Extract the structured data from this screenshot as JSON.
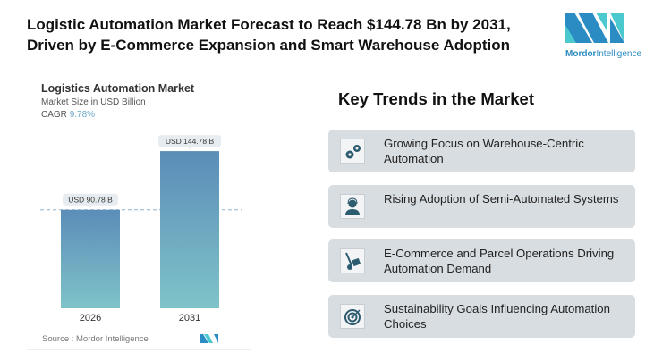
{
  "title": "Logistic Automation Market Forecast to Reach $144.78 Bn by 2031, Driven by E-Commerce Expansion and Smart Warehouse Adoption",
  "logo": {
    "word1": "Mordor",
    "word2": "Intelligence"
  },
  "chart_data": {
    "type": "bar",
    "title": "Logistics Automation Market",
    "subtitle": "Market Size in USD Billion",
    "cagr_label": "CAGR",
    "cagr_value": "9.78%",
    "categories": [
      "2026",
      "2031"
    ],
    "values": [
      90.78,
      144.78
    ],
    "data_labels": [
      "USD 90.78 B",
      "USD 144.78 B"
    ],
    "source": "Source :  Mordor Intelligence",
    "colors": {
      "bar_top": "#5b8db8",
      "bar_bottom": "#7fc3c9"
    }
  },
  "trends": {
    "heading": "Key Trends in the Market",
    "items": [
      {
        "icon": "gears-icon",
        "text": "Growing Focus on Warehouse-Centric Automation"
      },
      {
        "icon": "operator-headset-icon",
        "text": "Rising Adoption of Semi-Automated Systems"
      },
      {
        "icon": "hand-truck-icon",
        "text": "E-Commerce and Parcel Operations Driving Automation Demand"
      },
      {
        "icon": "target-icon",
        "text": "Sustainability Goals Influencing Automation Choices"
      }
    ]
  }
}
